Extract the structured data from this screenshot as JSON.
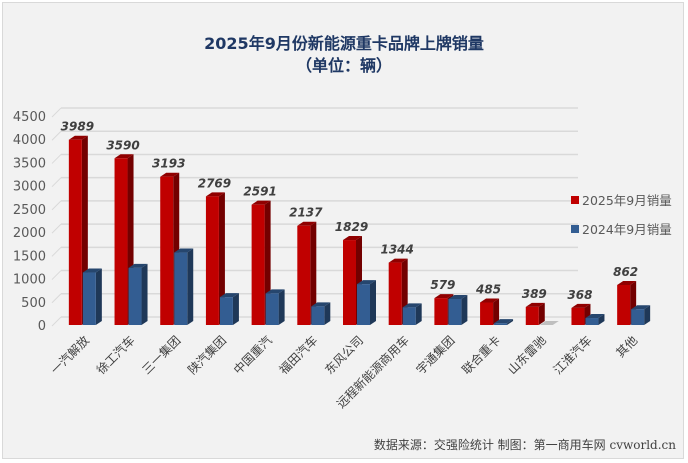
{
  "chart_data": {
    "type": "bar",
    "title": "2025年9月份新能源重卡品牌上牌销量",
    "subtitle": "（单位：辆）",
    "xlabel": "",
    "ylabel": "",
    "ylim": [
      0,
      4500
    ],
    "yticks": [
      0,
      500,
      1000,
      1500,
      2000,
      2500,
      3000,
      3500,
      4000,
      4500
    ],
    "grid": true,
    "legend_position": "right",
    "categories": [
      "一汽解放",
      "徐工汽车",
      "三一集团",
      "陕汽集团",
      "中国重汽",
      "福田汽车",
      "东风公司",
      "远程新能源商用车",
      "宇通集团",
      "联合重卡",
      "山东雷驰",
      "江淮汽车",
      "其他"
    ],
    "series": [
      {
        "name": "2025年9月销量",
        "color": "#c00000",
        "values": [
          3989,
          3590,
          3193,
          2769,
          2591,
          2137,
          1829,
          1344,
          579,
          485,
          389,
          368,
          862
        ],
        "labels_shown": true
      },
      {
        "name": "2024年9月销量",
        "color": "#335d92",
        "values": [
          1130,
          1230,
          1560,
          600,
          680,
          400,
          880,
          380,
          560,
          40,
          0,
          150,
          340
        ],
        "labels_shown": false
      }
    ],
    "source_note": "数据来源：交强险统计  制图：第一商用车网 cvworld.cn"
  }
}
